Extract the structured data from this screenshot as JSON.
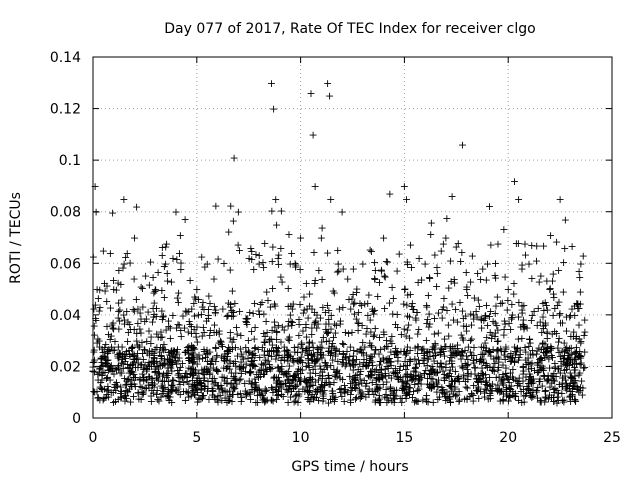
{
  "chart_data": {
    "type": "scatter",
    "title": "Day 077 of 2017, Rate Of TEC Index for receiver clgo",
    "xlabel": "GPS time / hours",
    "ylabel": "ROTI / TECUs",
    "xlim": [
      0,
      25
    ],
    "ylim": [
      0,
      0.14
    ],
    "xticks": [
      0,
      5,
      10,
      15,
      20,
      25
    ],
    "xtick_labels": [
      "0",
      "5",
      "10",
      "15",
      "20",
      "25"
    ],
    "yticks": [
      0,
      0.02,
      0.04,
      0.06,
      0.08,
      0.1,
      0.12,
      0.14
    ],
    "ytick_labels": [
      "0",
      "0.02",
      "0.04",
      "0.06",
      "0.08",
      "0.1",
      "0.12",
      "0.14"
    ],
    "grid": true,
    "marker": "+",
    "color": "#ff0000",
    "data_x_range_hours": [
      0,
      23.7
    ],
    "series": [
      {
        "name": "ROTI",
        "x": [
          0.0,
          0.1,
          0.15,
          0.2,
          0.3,
          0.5,
          1.0,
          1.5,
          2.0,
          2.1,
          3.0,
          3.5,
          4.0,
          5.0,
          5.5,
          6.5,
          6.8,
          7.0,
          8.0,
          8.6,
          8.7,
          8.8,
          9.5,
          10.0,
          10.5,
          10.6,
          10.7,
          11.0,
          11.3,
          11.4,
          12.0,
          13.0,
          14.0,
          14.3,
          15.0,
          15.1,
          16.0,
          17.0,
          17.3,
          17.8,
          18.0,
          19.0,
          20.0,
          20.3,
          20.5,
          21.0,
          22.0,
          22.5,
          23.0,
          23.5
        ],
        "y": [
          0.02,
          0.09,
          0.08,
          0.05,
          0.03,
          0.065,
          0.05,
          0.06,
          0.07,
          0.082,
          0.05,
          0.06,
          0.08,
          0.05,
          0.06,
          0.04,
          0.101,
          0.08,
          0.06,
          0.13,
          0.12,
          0.085,
          0.06,
          0.07,
          0.126,
          0.11,
          0.09,
          0.07,
          0.13,
          0.125,
          0.08,
          0.06,
          0.07,
          0.087,
          0.09,
          0.085,
          0.06,
          0.07,
          0.086,
          0.106,
          0.05,
          0.06,
          0.05,
          0.092,
          0.085,
          0.06,
          0.05,
          0.085,
          0.04,
          0.06
        ]
      }
    ]
  }
}
